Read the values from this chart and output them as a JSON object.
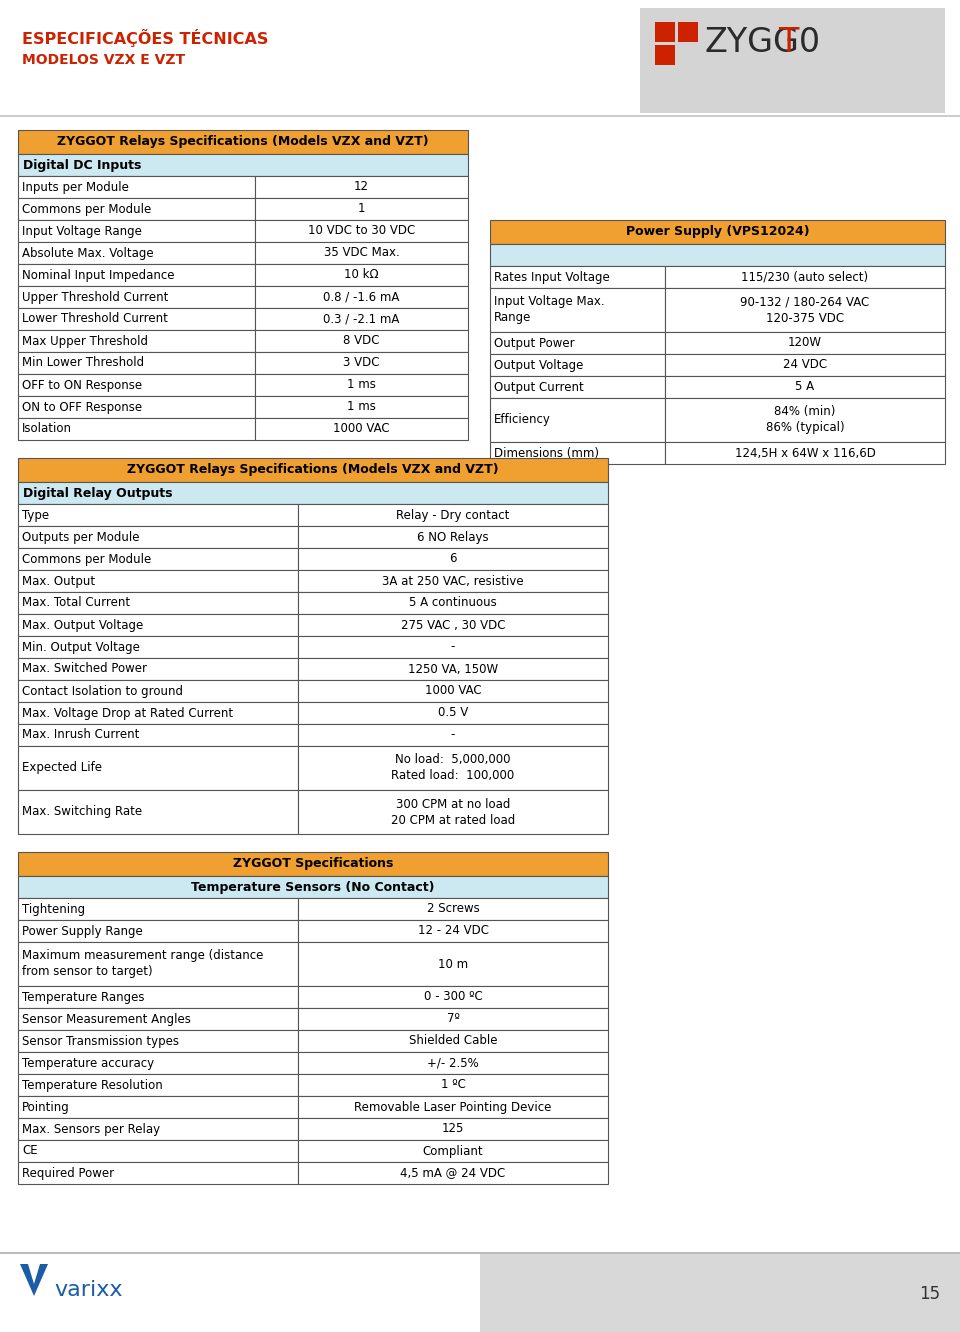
{
  "page_bg": "#ffffff",
  "header_title1": "ESPECIFICAÇÕES TÉCNICAS",
  "header_title2": "MODELOS VZX E VZT",
  "header_color": "#cc2200",
  "logo_bg": "#d4d4d4",
  "logo_color": "#cc2200",
  "page_number": "15",
  "orange_header": "#f0a030",
  "light_blue_row": "#cce8f0",
  "white_row": "#ffffff",
  "table1_title": "ZYGGOT Relays Specifications (Models VZX and VZT)",
  "table1_subheader": "Digital DC Inputs",
  "table1_rows": [
    [
      "Inputs per Module",
      "12"
    ],
    [
      "Commons per Module",
      "1"
    ],
    [
      "Input Voltage Range",
      "10 VDC to 30 VDC"
    ],
    [
      "Absolute Max. Voltage",
      "35 VDC Max."
    ],
    [
      "Nominal Input Impedance",
      "10 kΩ"
    ],
    [
      "Upper Threshold Current",
      "0.8 / -1.6 mA"
    ],
    [
      "Lower Threshold Current",
      "0.3 / -2.1 mA"
    ],
    [
      "Max Upper Threshold",
      "8 VDC"
    ],
    [
      "Min Lower Threshold",
      "3 VDC"
    ],
    [
      "OFF to ON Response",
      "1 ms"
    ],
    [
      "ON to OFF Response",
      "1 ms"
    ],
    [
      "Isolation",
      "1000 VAC"
    ]
  ],
  "table_ps_title": "Power Supply (VPS12024)",
  "table_ps_rows": [
    [
      "Rates Input Voltage",
      "115/230 (auto select)"
    ],
    [
      "Input Voltage Max.\nRange",
      "90-132 / 180-264 VAC\n120-375 VDC"
    ],
    [
      "Output Power",
      "120W"
    ],
    [
      "Output Voltage",
      "24 VDC"
    ],
    [
      "Output Current",
      "5 A"
    ],
    [
      "Efficiency",
      "84% (min)\n86% (typical)"
    ],
    [
      "Dimensions (mm)",
      "124,5H x 64W x 116,6D"
    ]
  ],
  "table2_title": "ZYGGOT Relays Specifications (Models VZX and VZT)",
  "table2_subheader": "Digital Relay Outputs",
  "table2_rows": [
    [
      "Type",
      "Relay - Dry contact"
    ],
    [
      "Outputs per Module",
      "6 NO Relays"
    ],
    [
      "Commons per Module",
      "6"
    ],
    [
      "Max. Output",
      "3A at 250 VAC, resistive"
    ],
    [
      "Max. Total Current",
      "5 A continuous"
    ],
    [
      "Max. Output Voltage",
      "275 VAC , 30 VDC"
    ],
    [
      "Min. Output Voltage",
      "-"
    ],
    [
      "Max. Switched Power",
      "1250 VA, 150W"
    ],
    [
      "Contact Isolation to ground",
      "1000 VAC"
    ],
    [
      "Max. Voltage Drop at Rated Current",
      "0.5 V"
    ],
    [
      "Max. Inrush Current",
      "-"
    ],
    [
      "Expected Life",
      "No load:  5,000,000\nRated load:  100,000"
    ],
    [
      "Max. Switching Rate",
      "300 CPM at no load\n20 CPM at rated load"
    ]
  ],
  "table3_title": "ZYGGOT Specifications",
  "table3_subheader": "Temperature Sensors (No Contact)",
  "table3_rows": [
    [
      "Tightening",
      "2 Screws"
    ],
    [
      "Power Supply Range",
      "12 - 24 VDC"
    ],
    [
      "Maximum measurement range (distance\nfrom sensor to target)",
      "10 m"
    ],
    [
      "Temperature Ranges",
      "0 - 300 ºC"
    ],
    [
      "Sensor Measurement Angles",
      "7º"
    ],
    [
      "Sensor Transmission types",
      "Shielded Cable"
    ],
    [
      "Temperature accuracy",
      "+/- 2.5%"
    ],
    [
      "Temperature Resolution",
      "1 ºC"
    ],
    [
      "Pointing",
      "Removable Laser Pointing Device"
    ],
    [
      "Max. Sensors per Relay",
      "125"
    ],
    [
      "CE",
      "Compliant"
    ],
    [
      "Required Power",
      "4,5 mA @ 24 VDC"
    ]
  ]
}
